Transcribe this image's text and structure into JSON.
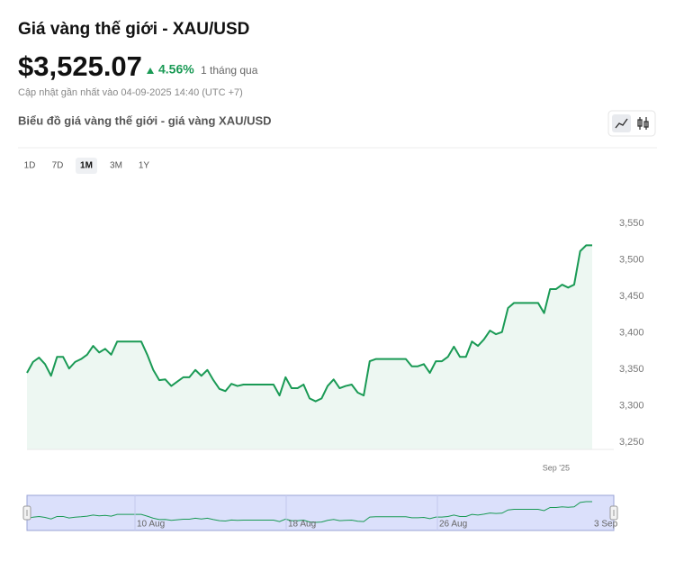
{
  "header": {
    "title": "Giá vàng thế giới - XAU/USD",
    "price": "$3,525.07",
    "change": "4.56%",
    "period": "1 tháng qua",
    "updated": "Cập nhật gần nhất vào 04-09-2025 14:40 (UTC +7)",
    "chart_heading": "Biểu đồ giá vàng thế giới - giá vàng XAU/USD"
  },
  "range_buttons": {
    "options": [
      "1D",
      "7D",
      "1M",
      "3M",
      "1Y"
    ],
    "selected": "1M"
  },
  "chart_data": {
    "type": "area",
    "color": "#1a9a55",
    "categories": [
      null,
      null,
      null,
      null,
      null,
      null,
      null,
      null,
      null,
      null,
      null,
      null,
      null,
      null,
      null,
      null,
      null,
      null,
      null,
      null,
      null,
      null,
      null,
      null,
      null,
      null,
      null,
      null,
      null,
      null,
      null,
      null,
      null,
      null,
      null,
      null,
      null,
      null,
      null,
      null,
      null,
      null,
      null,
      null,
      null,
      null,
      null,
      null,
      null,
      null,
      null,
      null,
      null,
      null,
      null,
      null,
      null,
      null,
      null,
      null,
      null,
      null,
      null,
      null,
      null,
      null,
      null,
      null,
      null,
      null,
      null,
      null,
      null,
      null,
      null,
      null,
      null,
      null,
      null,
      null,
      null,
      null,
      null,
      null,
      null,
      null,
      null,
      null,
      "Sep '25",
      null,
      null,
      null,
      null,
      null,
      null
    ],
    "values": [
      3345,
      3360,
      3366,
      3357,
      3341,
      3367,
      3367,
      3351,
      3360,
      3364,
      3370,
      3382,
      3373,
      3378,
      3370,
      3388,
      3388,
      3388,
      3388,
      3388,
      3370,
      3349,
      3335,
      3336,
      3327,
      3333,
      3339,
      3339,
      3349,
      3341,
      3349,
      3335,
      3323,
      3320,
      3330,
      3327,
      3329,
      3329,
      3329,
      3329,
      3329,
      3329,
      3314,
      3339,
      3324,
      3324,
      3329,
      3310,
      3306,
      3310,
      3327,
      3336,
      3324,
      3327,
      3329,
      3318,
      3314,
      3361,
      3364,
      3364,
      3364,
      3364,
      3364,
      3364,
      3354,
      3354,
      3357,
      3345,
      3361,
      3361,
      3367,
      3381,
      3367,
      3367,
      3388,
      3382,
      3391,
      3403,
      3398,
      3401,
      3434,
      3441,
      3441,
      3441,
      3441,
      3441,
      3427,
      3460,
      3460,
      3466,
      3462,
      3466,
      3512,
      3520,
      3520
    ],
    "ylim": [
      3240,
      3560
    ],
    "yticks": [
      {
        "value": 3250,
        "label": "3,250"
      },
      {
        "value": 3300,
        "label": "3,300"
      },
      {
        "value": 3350,
        "label": "3,350"
      },
      {
        "value": 3400,
        "label": "3,400"
      },
      {
        "value": 3450,
        "label": "3,450"
      },
      {
        "value": 3500,
        "label": "3,500"
      },
      {
        "value": 3550,
        "label": "3,550"
      }
    ],
    "grid": false
  },
  "navigator": {
    "labels": [
      "10 Aug",
      "18 Aug",
      "26 Aug",
      "3 Sep"
    ]
  }
}
